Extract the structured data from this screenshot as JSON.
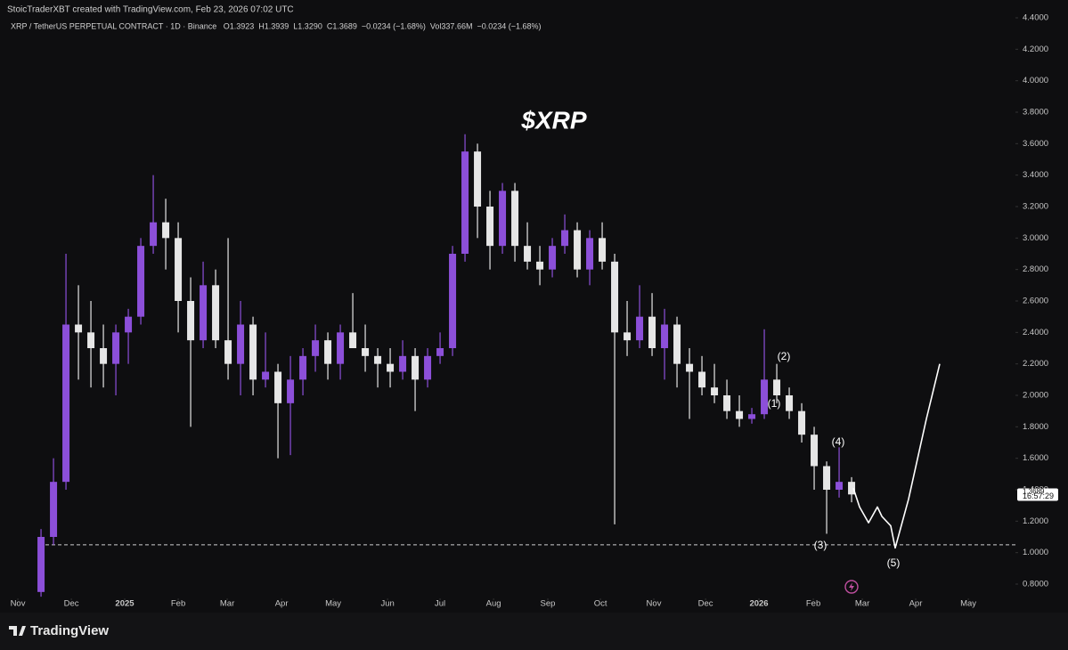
{
  "header": {
    "credit": "StoicTraderXBT created with TradingView.com, Feb 23, 2026 07:02 UTC"
  },
  "footer": {
    "brand": "TradingView"
  },
  "chart_data": {
    "type": "candlestick",
    "title": "$XRP",
    "legend_text": "XRP / TetherUS PERPETUAL CONTRACT · 1D · Binance   O1.3923  H1.3939  L1.3290  C1.3689  −0.0234 (−1.68%)  Vol337.66M  −0.0234 (−1.68%)",
    "up_color": "#8c4fd9",
    "down_color": "#e6e6e6",
    "categories": [
      null,
      null,
      null,
      null,
      null,
      null,
      null,
      null,
      null,
      null,
      null,
      null,
      null,
      null,
      null,
      null,
      null,
      null,
      null,
      null,
      null,
      null,
      null,
      null,
      null,
      null,
      null,
      null,
      null,
      null,
      null,
      null,
      null,
      null,
      null,
      null,
      null,
      null,
      null,
      null,
      null,
      null,
      null,
      null,
      null,
      null,
      null,
      null,
      null,
      null,
      null,
      null,
      null,
      null,
      null,
      null,
      null,
      null,
      null,
      null,
      null,
      null,
      null,
      null,
      null,
      null
    ],
    "open": [
      0.75,
      1.1,
      1.45,
      2.45,
      2.4,
      2.3,
      2.2,
      2.4,
      2.5,
      2.95,
      3.1,
      3.0,
      2.6,
      2.35,
      2.7,
      2.35,
      2.2,
      2.45,
      2.1,
      2.15,
      1.95,
      2.1,
      2.25,
      2.35,
      2.2,
      2.4,
      2.3,
      2.25,
      2.2,
      2.15,
      2.25,
      2.1,
      2.25,
      2.3,
      2.9,
      3.55,
      3.2,
      2.95,
      3.3,
      2.95,
      2.85,
      2.8,
      2.95,
      3.05,
      2.8,
      3.0,
      2.85,
      2.4,
      2.35,
      2.5,
      2.3,
      2.45,
      2.2,
      2.15,
      2.05,
      2.0,
      1.9,
      1.85,
      1.88,
      2.1,
      2.0,
      1.9,
      1.75,
      1.55,
      1.4,
      1.45
    ],
    "high": [
      1.15,
      1.6,
      2.9,
      2.7,
      2.6,
      2.45,
      2.45,
      2.55,
      3.0,
      3.4,
      3.25,
      3.1,
      2.75,
      2.85,
      2.8,
      3.0,
      2.6,
      2.5,
      2.4,
      2.2,
      2.25,
      2.3,
      2.45,
      2.4,
      2.45,
      2.65,
      2.45,
      2.3,
      2.3,
      2.35,
      2.3,
      2.3,
      2.4,
      2.95,
      3.66,
      3.6,
      3.3,
      3.35,
      3.35,
      3.1,
      2.95,
      3.0,
      3.15,
      3.1,
      3.05,
      3.1,
      2.9,
      2.6,
      2.7,
      2.65,
      2.55,
      2.5,
      2.3,
      2.25,
      2.2,
      2.1,
      2.0,
      1.92,
      2.42,
      2.2,
      2.05,
      1.95,
      1.8,
      1.58,
      1.67,
      1.48
    ],
    "low": [
      0.72,
      1.05,
      1.4,
      2.1,
      2.05,
      2.05,
      2.0,
      2.2,
      2.45,
      2.9,
      2.8,
      2.4,
      1.8,
      2.3,
      2.3,
      2.1,
      2.0,
      2.0,
      2.05,
      1.6,
      1.62,
      2.0,
      2.15,
      2.1,
      2.1,
      2.3,
      2.15,
      2.05,
      2.05,
      2.1,
      1.9,
      2.05,
      2.2,
      2.25,
      2.85,
      3.0,
      2.8,
      2.9,
      2.85,
      2.8,
      2.7,
      2.75,
      2.9,
      2.75,
      2.7,
      2.8,
      1.18,
      2.25,
      2.3,
      2.25,
      2.1,
      2.05,
      1.85,
      2.0,
      1.95,
      1.85,
      1.8,
      1.82,
      1.85,
      1.95,
      1.85,
      1.7,
      1.4,
      1.12,
      1.35,
      1.32
    ],
    "close": [
      1.1,
      1.45,
      2.45,
      2.4,
      2.3,
      2.2,
      2.4,
      2.5,
      2.95,
      3.1,
      3.0,
      2.6,
      2.35,
      2.7,
      2.35,
      2.2,
      2.45,
      2.1,
      2.15,
      1.95,
      2.1,
      2.25,
      2.35,
      2.2,
      2.4,
      2.3,
      2.25,
      2.2,
      2.15,
      2.25,
      2.1,
      2.25,
      2.3,
      2.9,
      3.55,
      3.2,
      2.95,
      3.3,
      2.95,
      2.85,
      2.8,
      2.95,
      3.05,
      2.8,
      3.0,
      2.85,
      2.4,
      2.35,
      2.5,
      2.3,
      2.45,
      2.2,
      2.15,
      2.05,
      2.0,
      1.9,
      1.85,
      1.88,
      2.1,
      2.0,
      1.9,
      1.75,
      1.55,
      1.4,
      1.45,
      1.37
    ],
    "projection": {
      "color": "#ffffff",
      "x": [
        65.14,
        65.64,
        66.36,
        67.07,
        67.43,
        68.14,
        68.5,
        69.57,
        71,
        72.07
      ],
      "values": [
        1.41,
        1.29,
        1.19,
        1.29,
        1.23,
        1.17,
        1.03,
        1.34,
        1.85,
        2.2
      ]
    },
    "hline": {
      "value": 1.05,
      "color": "#cfcfcf"
    },
    "annotations": [
      "(1)",
      "(2)",
      "(3)",
      "(4)",
      "(5)"
    ],
    "last_price": {
      "value": 1.3689,
      "countdown": "16:57:29"
    },
    "xlim": [
      -3.29,
      78.14
    ],
    "xticks": [
      {
        "value": -1.86,
        "label": "Nov"
      },
      {
        "value": 2.43,
        "label": "Dec"
      },
      {
        "value": 6.71,
        "label": "2025"
      },
      {
        "value": 11,
        "label": "Feb"
      },
      {
        "value": 14.93,
        "label": "Mar"
      },
      {
        "value": 19.29,
        "label": "Apr"
      },
      {
        "value": 23.43,
        "label": "May"
      },
      {
        "value": 27.79,
        "label": "Jun"
      },
      {
        "value": 32,
        "label": "Jul"
      },
      {
        "value": 36.29,
        "label": "Aug"
      },
      {
        "value": 40.64,
        "label": "Sep"
      },
      {
        "value": 44.86,
        "label": "Oct"
      },
      {
        "value": 49.14,
        "label": "Nov"
      },
      {
        "value": 53.29,
        "label": "Dec"
      },
      {
        "value": 57.57,
        "label": "2026"
      },
      {
        "value": 61.93,
        "label": "Feb"
      },
      {
        "value": 65.86,
        "label": "Mar"
      },
      {
        "value": 70.14,
        "label": "Apr"
      },
      {
        "value": 74.36,
        "label": "May"
      }
    ],
    "ylim": [
      0.7434,
      4.4566
    ],
    "yticks": [
      {
        "value": 0.8,
        "label": "0.8000"
      },
      {
        "value": 1.0,
        "label": "1.0000"
      },
      {
        "value": 1.2,
        "label": "1.2000"
      },
      {
        "value": 1.4,
        "label": "1.4000"
      },
      {
        "value": 1.6,
        "label": "1.6000"
      },
      {
        "value": 1.8,
        "label": "1.8000"
      },
      {
        "value": 2.0,
        "label": "2.0000"
      },
      {
        "value": 2.2,
        "label": "2.2000"
      },
      {
        "value": 2.4,
        "label": "2.4000"
      },
      {
        "value": 2.6,
        "label": "2.6000"
      },
      {
        "value": 2.8,
        "label": "2.8000"
      },
      {
        "value": 3.0,
        "label": "3.0000"
      },
      {
        "value": 3.2,
        "label": "3.2000"
      },
      {
        "value": 3.4,
        "label": "3.4000"
      },
      {
        "value": 3.6,
        "label": "3.6000"
      },
      {
        "value": 3.8,
        "label": "3.8000"
      },
      {
        "value": 4.0,
        "label": "4.0000"
      },
      {
        "value": 4.2,
        "label": "4.2000"
      },
      {
        "value": 4.4,
        "label": "4.4000"
      }
    ]
  }
}
